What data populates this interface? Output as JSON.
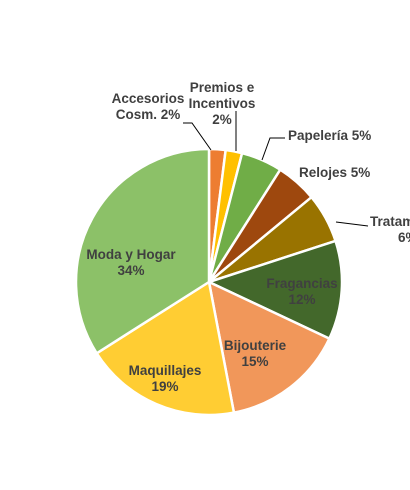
{
  "chart_data": {
    "type": "pie",
    "title": "",
    "slices": [
      {
        "name": "Accesorios Cosm.",
        "value": 2,
        "label_lines": [
          "Accesorios",
          "Cosm. 2%"
        ],
        "color": "#ED7D31"
      },
      {
        "name": "Premios e Incentivos",
        "value": 2,
        "label_lines": [
          "Premios e",
          "Incentivos",
          "2%"
        ],
        "color": "#FFC000"
      },
      {
        "name": "Papelería",
        "value": 5,
        "label_lines": [
          "Papelería 5%"
        ],
        "color": "#70AD47"
      },
      {
        "name": "Relojes",
        "value": 5,
        "label_lines": [
          "Relojes 5%"
        ],
        "color": "#9E480E"
      },
      {
        "name": "Tratamiento",
        "value": 6,
        "label_lines": [
          "Tratam",
          "6%"
        ],
        "color": "#997300"
      },
      {
        "name": "Fragancias",
        "value": 12,
        "label_lines": [
          "Fragancias",
          "12%"
        ],
        "color": "#43682B"
      },
      {
        "name": "Bijouterie",
        "value": 15,
        "label_lines": [
          "Bijouterie",
          "15%"
        ],
        "color": "#F1975A"
      },
      {
        "name": "Maquillajes",
        "value": 19,
        "label_lines": [
          "Maquillajes",
          "19%"
        ],
        "color": "#FFCD33"
      },
      {
        "name": "Moda y Hogar",
        "value": 34,
        "label_lines": [
          "Moda y Hogar",
          "34%"
        ],
        "color": "#8CC168"
      }
    ]
  }
}
